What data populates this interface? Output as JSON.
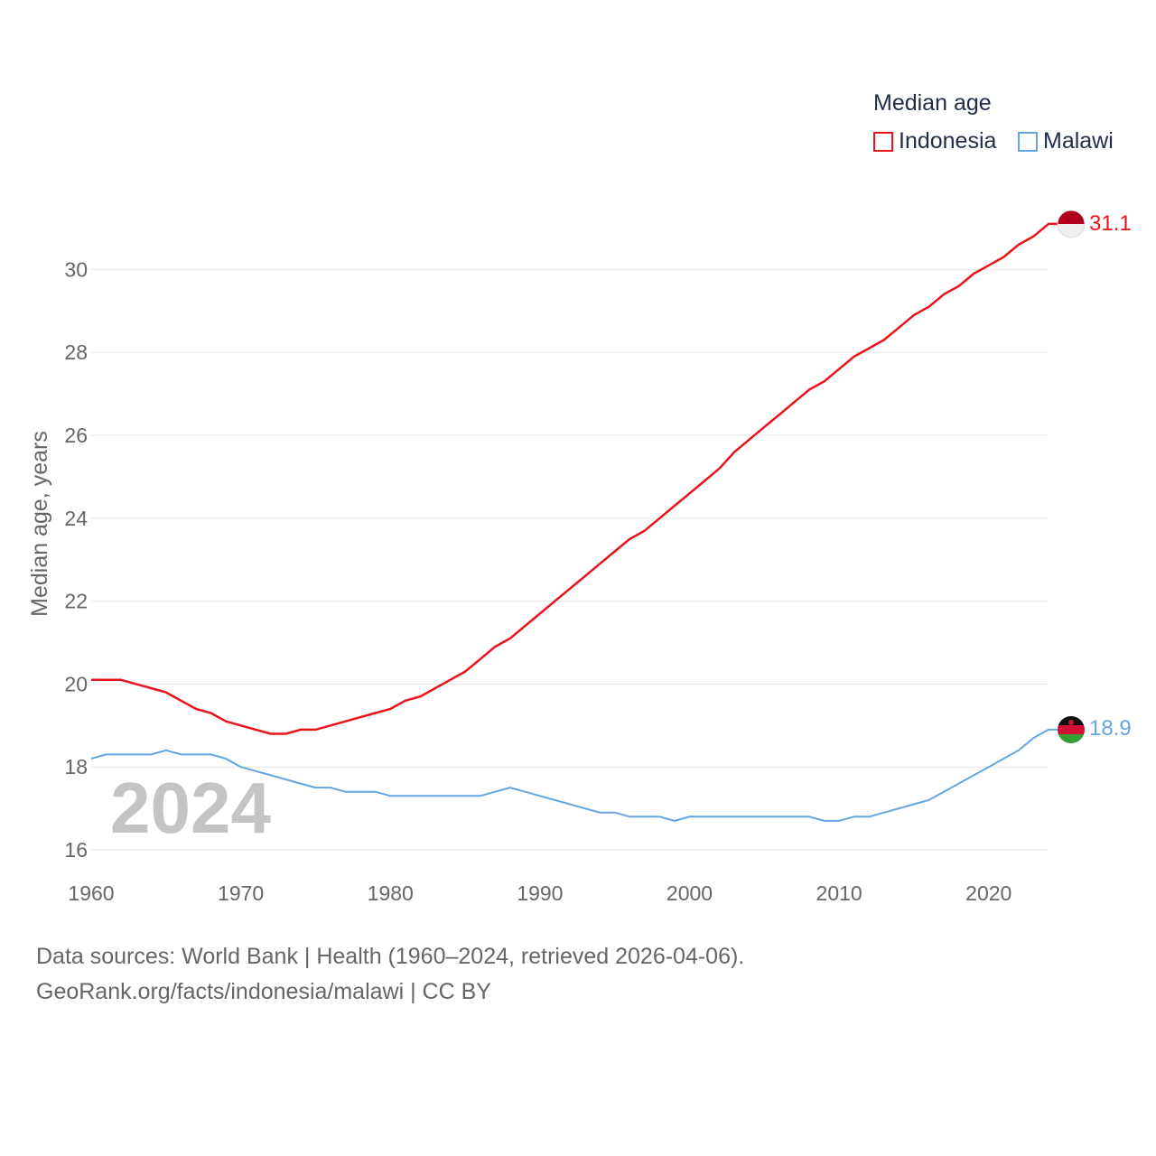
{
  "colors": {
    "indonesia": "#e8131b",
    "malawi": "#65a6e2",
    "grid": "#e6e6e6",
    "text": "#666666"
  },
  "legend": {
    "title": "Median age",
    "items": [
      {
        "label": "Indonesia"
      },
      {
        "label": "Malawi"
      }
    ]
  },
  "source": {
    "line1": "Data sources: World Bank | Health (1960–2024, retrieved 2026-04-06).",
    "line2": "GeoRank.org/facts/indonesia/malawi | CC BY"
  },
  "chart_data": {
    "type": "line",
    "title": "Median age",
    "ylabel": "Median age, years",
    "xlabel": "",
    "year_watermark": "2024",
    "xlim": [
      1960,
      2024
    ],
    "ylim": [
      16,
      31.5
    ],
    "x_ticks": [
      1960,
      1970,
      1980,
      1990,
      2000,
      2010,
      2020
    ],
    "y_ticks": [
      16,
      18,
      20,
      22,
      24,
      26,
      28,
      30
    ],
    "x": [
      1960,
      1961,
      1962,
      1963,
      1964,
      1965,
      1966,
      1967,
      1968,
      1969,
      1970,
      1971,
      1972,
      1973,
      1974,
      1975,
      1976,
      1977,
      1978,
      1979,
      1980,
      1981,
      1982,
      1983,
      1984,
      1985,
      1986,
      1987,
      1988,
      1989,
      1990,
      1991,
      1992,
      1993,
      1994,
      1995,
      1996,
      1997,
      1998,
      1999,
      2000,
      2001,
      2002,
      2003,
      2004,
      2005,
      2006,
      2007,
      2008,
      2009,
      2010,
      2011,
      2012,
      2013,
      2014,
      2015,
      2016,
      2017,
      2018,
      2019,
      2020,
      2021,
      2022,
      2023,
      2024
    ],
    "series": [
      {
        "name": "Indonesia",
        "end_label": "31.1",
        "values": [
          20.1,
          20.1,
          20.1,
          20.0,
          19.9,
          19.8,
          19.6,
          19.4,
          19.3,
          19.1,
          19.0,
          18.9,
          18.8,
          18.8,
          18.9,
          18.9,
          19.0,
          19.1,
          19.2,
          19.3,
          19.4,
          19.6,
          19.7,
          19.9,
          20.1,
          20.3,
          20.6,
          20.9,
          21.1,
          21.4,
          21.7,
          22.0,
          22.3,
          22.6,
          22.9,
          23.2,
          23.5,
          23.7,
          24.0,
          24.3,
          24.6,
          24.9,
          25.2,
          25.6,
          25.9,
          26.2,
          26.5,
          26.8,
          27.1,
          27.3,
          27.6,
          27.9,
          28.1,
          28.3,
          28.6,
          28.9,
          29.1,
          29.4,
          29.6,
          29.9,
          30.1,
          30.3,
          30.6,
          30.8,
          31.1
        ]
      },
      {
        "name": "Malawi",
        "end_label": "18.9",
        "values": [
          18.2,
          18.3,
          18.3,
          18.3,
          18.3,
          18.4,
          18.3,
          18.3,
          18.3,
          18.2,
          18.0,
          17.9,
          17.8,
          17.7,
          17.6,
          17.5,
          17.5,
          17.4,
          17.4,
          17.4,
          17.3,
          17.3,
          17.3,
          17.3,
          17.3,
          17.3,
          17.3,
          17.4,
          17.5,
          17.4,
          17.3,
          17.2,
          17.1,
          17.0,
          16.9,
          16.9,
          16.8,
          16.8,
          16.8,
          16.7,
          16.8,
          16.8,
          16.8,
          16.8,
          16.8,
          16.8,
          16.8,
          16.8,
          16.8,
          16.7,
          16.7,
          16.8,
          16.8,
          16.9,
          17.0,
          17.1,
          17.2,
          17.4,
          17.6,
          17.8,
          18.0,
          18.2,
          18.4,
          18.7,
          18.9
        ]
      }
    ]
  }
}
